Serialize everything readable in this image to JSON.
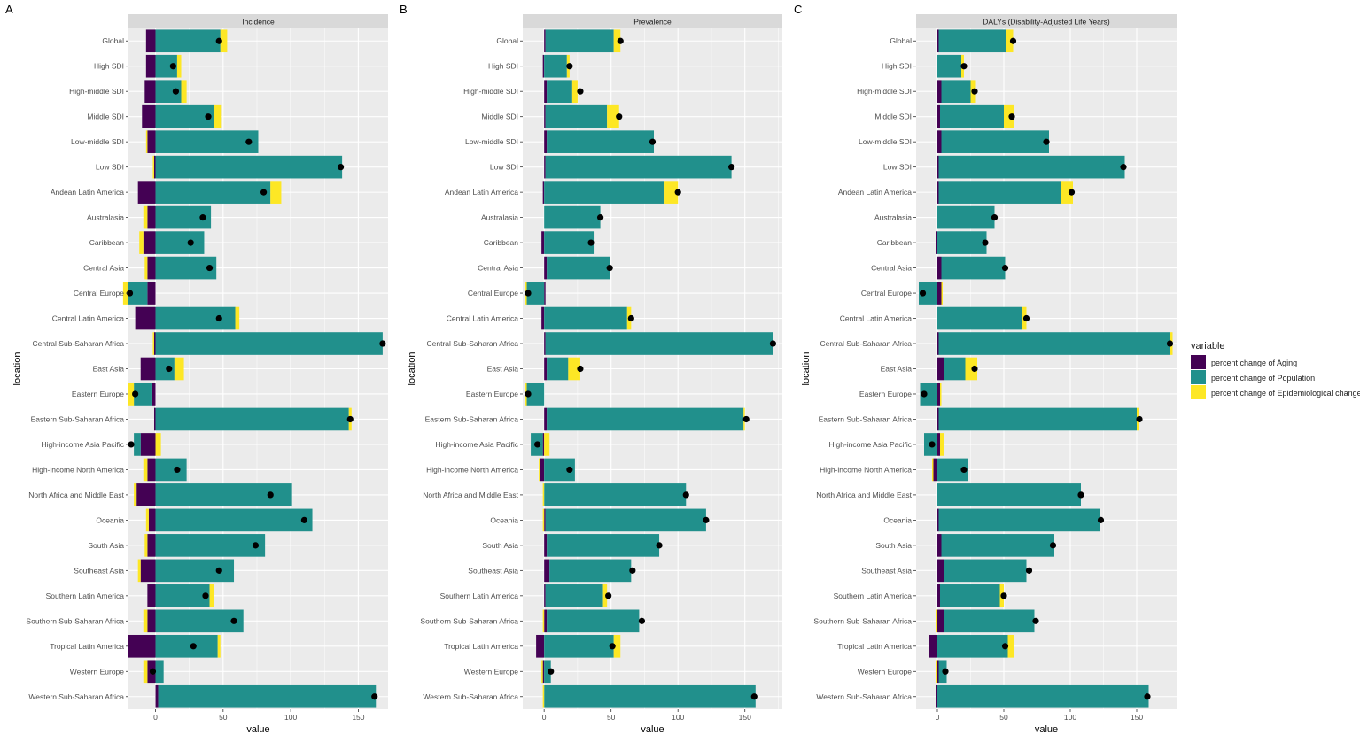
{
  "colors": {
    "aging": "#440154",
    "population": "#21908C",
    "epidemiological": "#FDE725",
    "panel_bg": "#EBEBEB",
    "grid": "#FFFFFF",
    "strip_bg": "#D9D9D9",
    "point": "#000000"
  },
  "legend": {
    "title": "variable",
    "items": [
      {
        "key": "aging",
        "label": "percent change of Aging"
      },
      {
        "key": "population",
        "label": "percent change of Population"
      },
      {
        "key": "epidemiological",
        "label": "percent change of Epidemiological change"
      }
    ]
  },
  "chart_data": [
    {
      "type": "bar",
      "stacked": "diverging-horizontal",
      "panel_letter": "A",
      "title": "Incidence",
      "xlabel": "value",
      "ylabel": "location",
      "xlim": [
        -20,
        172
      ],
      "xticks": [
        0,
        50,
        100,
        150
      ],
      "grid": true,
      "categories": [
        "Global",
        "High SDI",
        "High-middle SDI",
        "Middle SDI",
        "Low-middle SDI",
        "Low SDI",
        "Andean Latin America",
        "Australasia",
        "Caribbean",
        "Central Asia",
        "Central Europe",
        "Central Latin America",
        "Central Sub-Saharan Africa",
        "East Asia",
        "Eastern Europe",
        "Eastern Sub-Saharan Africa",
        "High-income Asia Pacific",
        "High-income North America",
        "North Africa and Middle East",
        "Oceania",
        "South Asia",
        "Southeast Asia",
        "Southern Latin America",
        "Southern Sub-Saharan Africa",
        "Tropical Latin America",
        "Western Europe",
        "Western Sub-Saharan Africa"
      ],
      "series": [
        {
          "name": "percent change of Aging",
          "key": "aging",
          "values": [
            -7,
            -7,
            -8,
            -10,
            -6,
            -1,
            -13,
            -6,
            -9,
            -6,
            -6,
            -15,
            -1,
            -11,
            -3,
            -1,
            -11,
            -6,
            -14,
            -5,
            -6,
            -11,
            -6,
            -6,
            -20,
            -6,
            2
          ]
        },
        {
          "name": "percent change of Population",
          "key": "population",
          "values": [
            48,
            16,
            19,
            43,
            76,
            138,
            85,
            41,
            36,
            45,
            -14,
            59,
            168,
            14,
            -13,
            143,
            -5,
            23,
            101,
            116,
            81,
            58,
            40,
            65,
            46,
            6,
            161
          ]
        },
        {
          "name": "percent change of Epidemiological change",
          "key": "epidemiological",
          "values": [
            5,
            3,
            4,
            6,
            -1,
            -1,
            8,
            -3,
            -3,
            -2,
            -4,
            3,
            -1,
            7,
            -4,
            2,
            4,
            -3,
            -2,
            -2,
            -2,
            -2,
            3,
            -3,
            2,
            -3,
            0
          ]
        }
      ],
      "overall": [
        47,
        13,
        15,
        39,
        69,
        137,
        80,
        35,
        26,
        40,
        -19,
        47,
        168,
        10,
        -15,
        144,
        -18,
        16,
        85,
        110,
        74,
        47,
        37,
        58,
        28,
        -2,
        162
      ]
    },
    {
      "type": "bar",
      "stacked": "diverging-horizontal",
      "panel_letter": "B",
      "title": "Prevalence",
      "xlabel": "value",
      "ylabel": "location",
      "xlim": [
        -16,
        178
      ],
      "xticks": [
        0,
        50,
        100,
        150
      ],
      "grid": true,
      "categories": [
        "Global",
        "High SDI",
        "High-middle SDI",
        "Middle SDI",
        "Low-middle SDI",
        "Low SDI",
        "Andean Latin America",
        "Australasia",
        "Caribbean",
        "Central Asia",
        "Central Europe",
        "Central Latin America",
        "Central Sub-Saharan Africa",
        "East Asia",
        "Eastern Europe",
        "Eastern Sub-Saharan Africa",
        "High-income Asia Pacific",
        "High-income North America",
        "North Africa and Middle East",
        "Oceania",
        "South Asia",
        "Southeast Asia",
        "Southern Latin America",
        "Southern Sub-Saharan Africa",
        "Tropical Latin America",
        "Western Europe",
        "Western Sub-Saharan Africa"
      ],
      "series": [
        {
          "name": "percent change of Aging",
          "key": "aging",
          "values": [
            1,
            -1,
            2,
            1,
            2,
            1,
            -1,
            0,
            -2,
            2,
            1,
            -2,
            1,
            2,
            0,
            2,
            -1,
            -3,
            0,
            1,
            2,
            4,
            1,
            2,
            -6,
            -1,
            0
          ]
        },
        {
          "name": "percent change of Population",
          "key": "population",
          "values": [
            51,
            17,
            19,
            46,
            80,
            139,
            90,
            42,
            37,
            47,
            -13,
            62,
            170,
            16,
            -13,
            147,
            -9,
            23,
            106,
            120,
            84,
            61,
            43,
            69,
            52,
            5,
            158
          ]
        },
        {
          "name": "percent change of Epidemiological change",
          "key": "epidemiological",
          "values": [
            5,
            2,
            4,
            9,
            0,
            0,
            10,
            0,
            0,
            0,
            -1,
            3,
            0,
            9,
            -1,
            1,
            4,
            -1,
            -1,
            -1,
            0,
            0,
            3,
            -1,
            5,
            -1,
            -1
          ]
        }
      ],
      "overall": [
        57,
        19,
        27,
        56,
        81,
        140,
        100,
        42,
        35,
        49,
        -12,
        65,
        171,
        27,
        -12,
        151,
        -5,
        19,
        106,
        121,
        86,
        66,
        48,
        73,
        51,
        5,
        157
      ]
    },
    {
      "type": "bar",
      "stacked": "diverging-horizontal",
      "panel_letter": "C",
      "title": "DALYs (Disability-Adjusted Life Years)",
      "xlabel": "value",
      "ylabel": "location",
      "xlim": [
        -16,
        180
      ],
      "xticks": [
        0,
        50,
        100,
        150
      ],
      "grid": true,
      "categories": [
        "Global",
        "High SDI",
        "High-middle SDI",
        "Middle SDI",
        "Low-middle SDI",
        "Low SDI",
        "Andean Latin America",
        "Australasia",
        "Caribbean",
        "Central Asia",
        "Central Europe",
        "Central Latin America",
        "Central Sub-Saharan Africa",
        "East Asia",
        "Eastern Europe",
        "Eastern Sub-Saharan Africa",
        "High-income Asia Pacific",
        "High-income North America",
        "North Africa and Middle East",
        "Oceania",
        "South Asia",
        "Southeast Asia",
        "Southern Latin America",
        "Southern Sub-Saharan Africa",
        "Tropical Latin America",
        "Western Europe",
        "Western Sub-Saharan Africa"
      ],
      "series": [
        {
          "name": "percent change of Aging",
          "key": "aging",
          "values": [
            1,
            0,
            3,
            2,
            3,
            1,
            1,
            0,
            -1,
            3,
            3,
            0,
            1,
            5,
            2,
            1,
            2,
            -3,
            0,
            1,
            3,
            5,
            2,
            5,
            -6,
            1,
            -1
          ]
        },
        {
          "name": "percent change of Population",
          "key": "population",
          "values": [
            51,
            18,
            22,
            48,
            81,
            140,
            92,
            43,
            37,
            48,
            -14,
            64,
            174,
            16,
            -13,
            149,
            -10,
            23,
            108,
            121,
            85,
            62,
            45,
            68,
            53,
            6,
            159
          ]
        },
        {
          "name": "percent change of Epidemiological change",
          "key": "epidemiological",
          "values": [
            5,
            2,
            4,
            8,
            0,
            0,
            9,
            0,
            0,
            0,
            1,
            3,
            2,
            9,
            1,
            2,
            3,
            -1,
            0,
            0,
            0,
            0,
            3,
            -1,
            5,
            -1,
            0
          ]
        }
      ],
      "overall": [
        57,
        20,
        28,
        56,
        82,
        140,
        101,
        43,
        36,
        51,
        -11,
        67,
        175,
        28,
        -10,
        152,
        -4,
        20,
        108,
        123,
        87,
        69,
        50,
        74,
        51,
        6,
        158
      ]
    }
  ]
}
